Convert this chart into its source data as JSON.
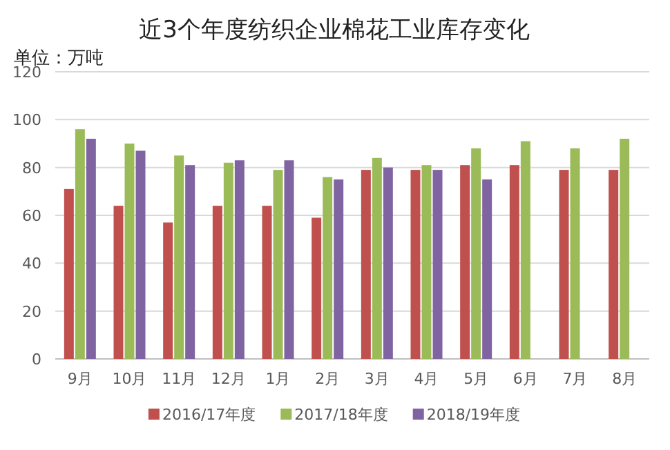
{
  "chart_data": {
    "type": "bar",
    "title": "近3个年度纺织企业棉花工业库存变化",
    "ylabel": "单位：万吨",
    "categories": [
      "9月",
      "10月",
      "11月",
      "12月",
      "1月",
      "2月",
      "3月",
      "4月",
      "5月",
      "6月",
      "7月",
      "8月"
    ],
    "series": [
      {
        "name": "2016/17年度",
        "color": "#c0504d",
        "values": [
          71,
          64,
          57,
          64,
          64,
          59,
          79,
          79,
          81,
          81,
          79,
          79
        ]
      },
      {
        "name": "2017/18年度",
        "color": "#9bbb59",
        "values": [
          96,
          90,
          85,
          82,
          79,
          76,
          84,
          81,
          88,
          91,
          88,
          92
        ]
      },
      {
        "name": "2018/19年度",
        "color": "#8064a2",
        "values": [
          92,
          87,
          81,
          83,
          83,
          75,
          80,
          79,
          75,
          null,
          null,
          null
        ]
      }
    ],
    "ylim": [
      0,
      120
    ],
    "yticks": [
      0,
      20,
      40,
      60,
      80,
      100,
      120
    ],
    "grid": "y",
    "legend": "bottom"
  }
}
